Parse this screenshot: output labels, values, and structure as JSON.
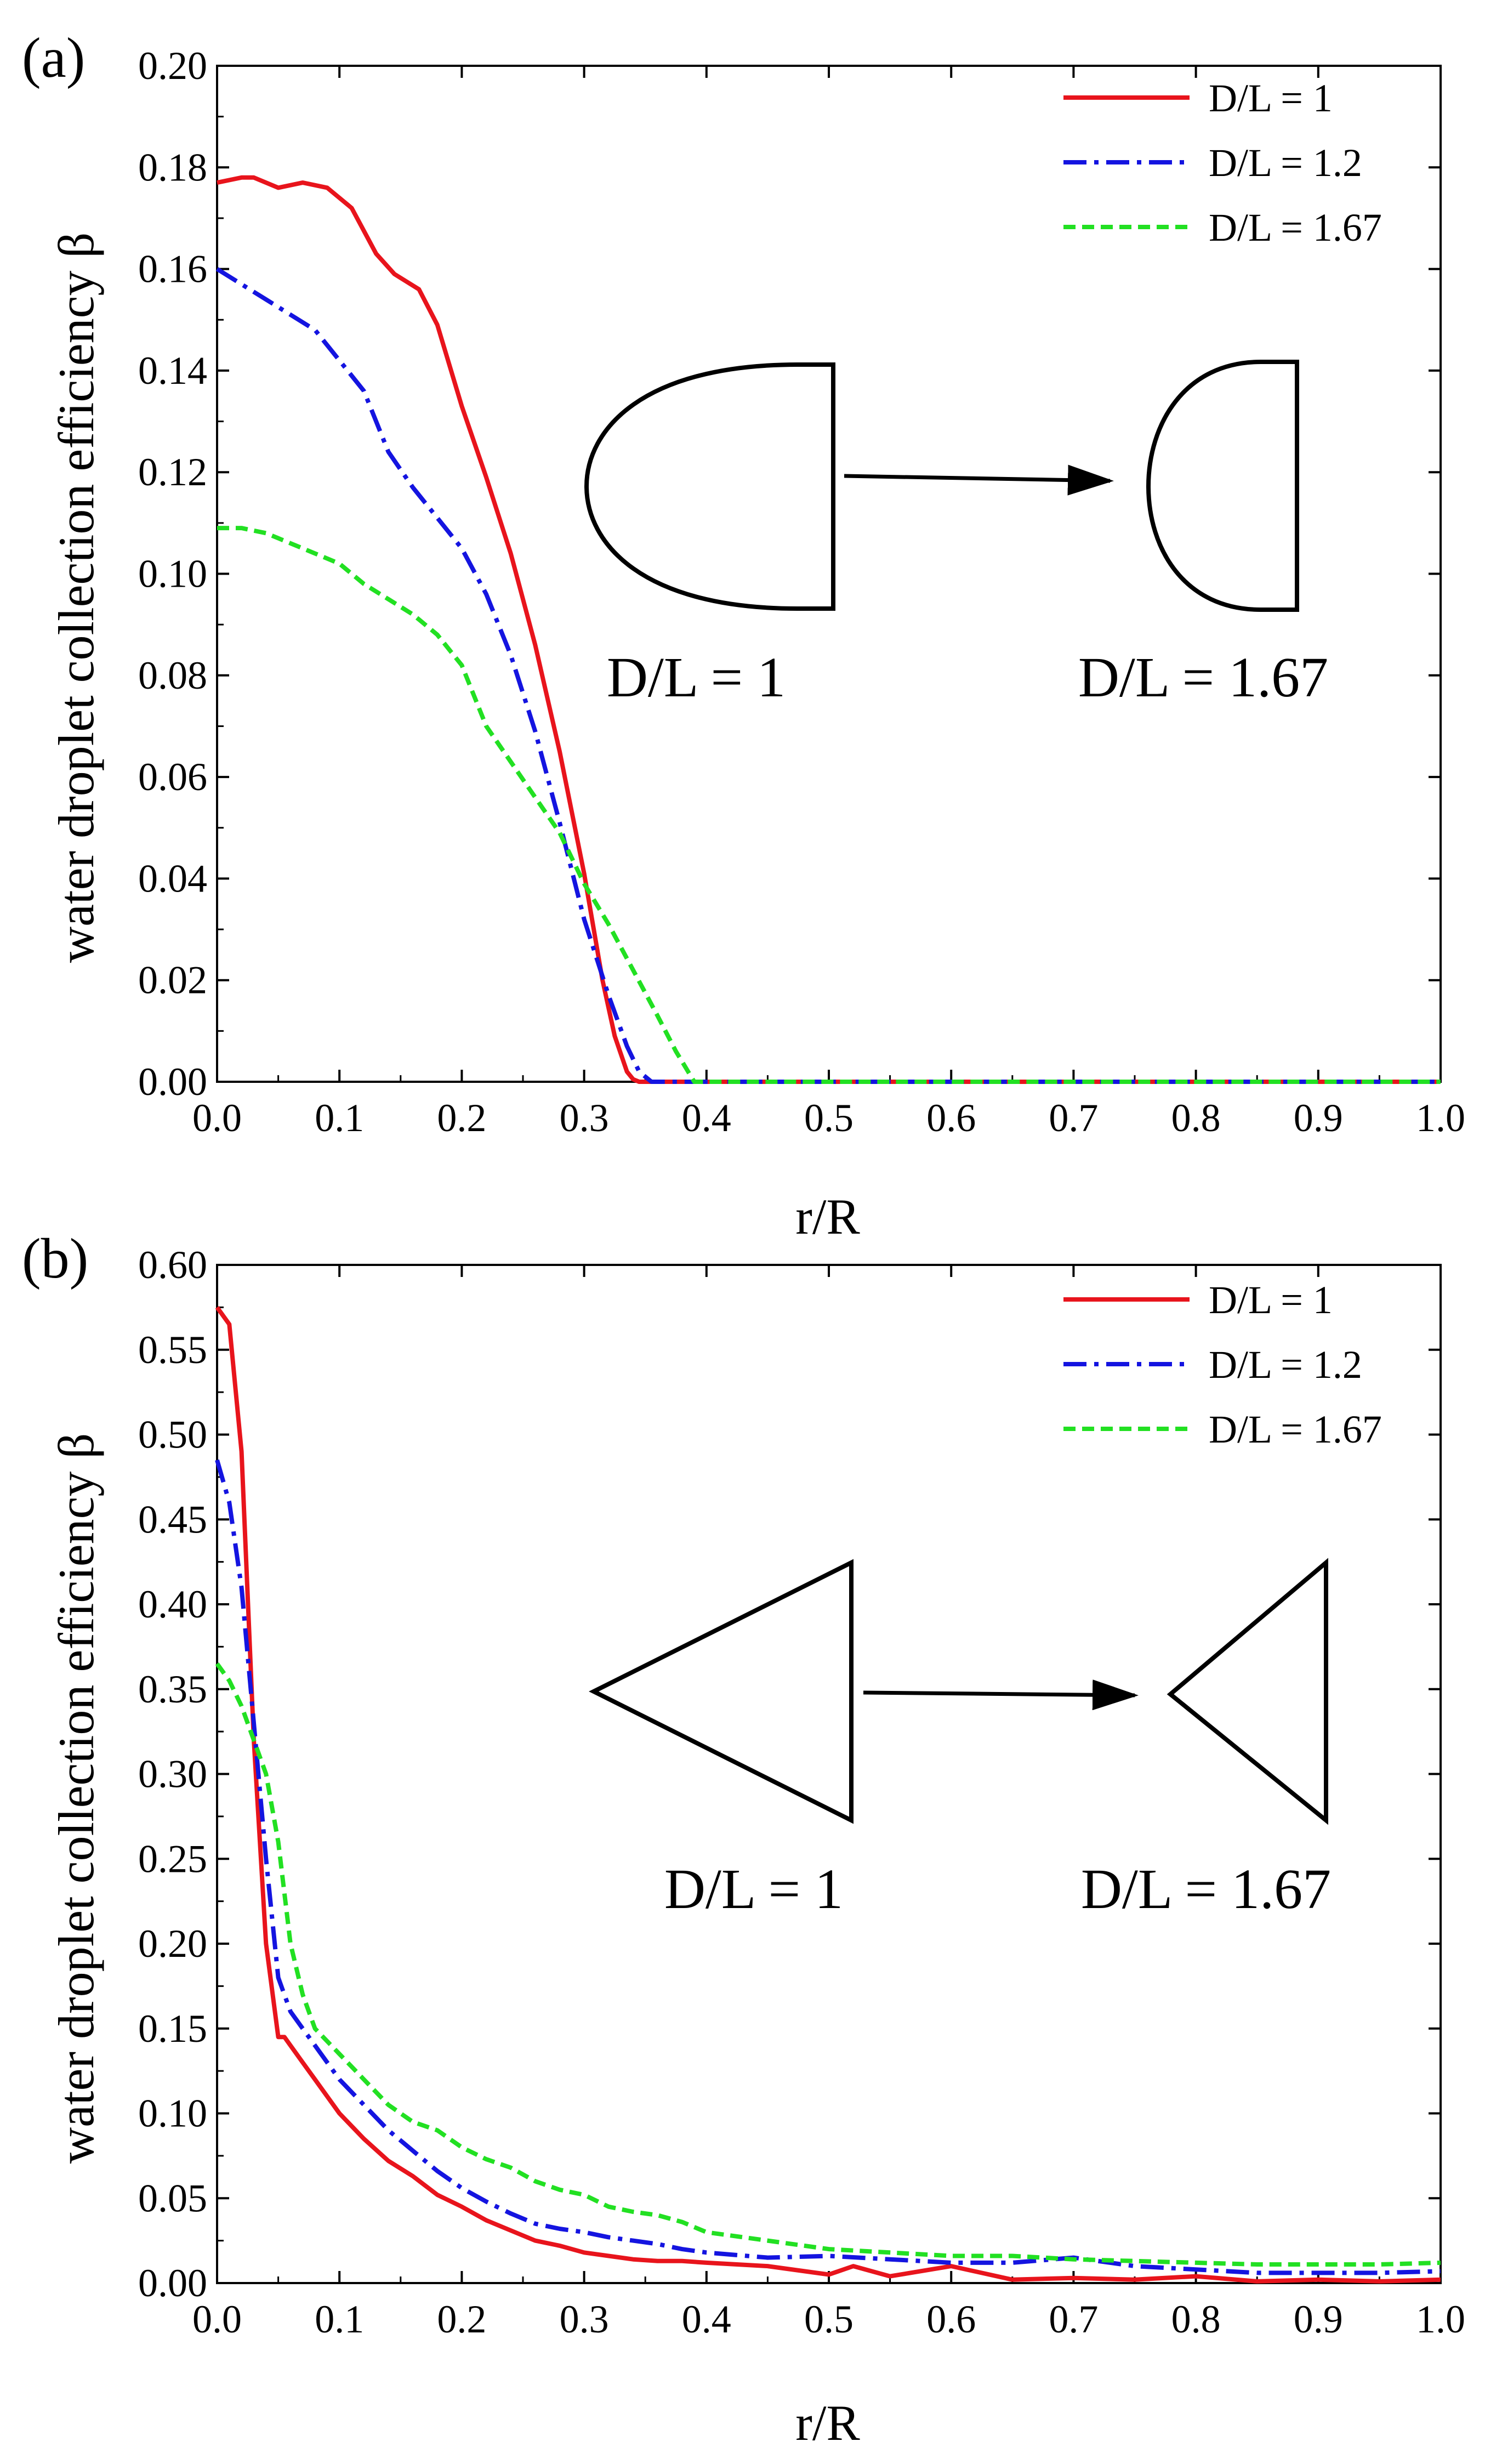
{
  "chart_data": [
    {
      "type": "line",
      "panel_label": "(a)",
      "xlabel": "r/R",
      "ylabel": "water droplet collection efficiency β",
      "xlim": [
        0.0,
        1.0
      ],
      "ylim": [
        0.0,
        0.2
      ],
      "x_ticks": [
        "0.0",
        "0.1",
        "0.2",
        "0.3",
        "0.4",
        "0.5",
        "0.6",
        "0.7",
        "0.8",
        "0.9",
        "1.0"
      ],
      "y_ticks": [
        "0.00",
        "0.02",
        "0.04",
        "0.06",
        "0.08",
        "0.10",
        "0.12",
        "0.14",
        "0.16",
        "0.18",
        "0.20"
      ],
      "legend_position": "top-right",
      "series": [
        {
          "name": "D/L = 1",
          "color": "#e8141c",
          "style": "solid",
          "x": [
            0.0,
            0.02,
            0.03,
            0.05,
            0.07,
            0.09,
            0.11,
            0.13,
            0.145,
            0.165,
            0.18,
            0.2,
            0.22,
            0.24,
            0.26,
            0.28,
            0.3,
            0.315,
            0.325,
            0.335,
            0.34,
            0.345,
            0.36,
            1.0
          ],
          "y": [
            0.177,
            0.178,
            0.178,
            0.176,
            0.177,
            0.176,
            0.172,
            0.163,
            0.159,
            0.156,
            0.149,
            0.133,
            0.119,
            0.104,
            0.086,
            0.065,
            0.041,
            0.02,
            0.009,
            0.002,
            0.0005,
            0.0,
            0.0,
            0.0
          ]
        },
        {
          "name": "D/L = 1.2",
          "color": "#1414e0",
          "style": "dashdot",
          "x": [
            0.0,
            0.02,
            0.04,
            0.06,
            0.08,
            0.1,
            0.12,
            0.14,
            0.16,
            0.18,
            0.2,
            0.22,
            0.24,
            0.26,
            0.28,
            0.3,
            0.32,
            0.335,
            0.345,
            0.355,
            0.36,
            1.0
          ],
          "y": [
            0.16,
            0.157,
            0.154,
            0.151,
            0.148,
            0.142,
            0.136,
            0.124,
            0.117,
            0.111,
            0.105,
            0.096,
            0.084,
            0.069,
            0.051,
            0.032,
            0.017,
            0.007,
            0.002,
            0.0,
            0.0,
            0.0
          ]
        },
        {
          "name": "D/L = 1.67",
          "color": "#22e022",
          "style": "dashed",
          "x": [
            0.0,
            0.02,
            0.04,
            0.06,
            0.08,
            0.1,
            0.12,
            0.14,
            0.16,
            0.18,
            0.2,
            0.22,
            0.24,
            0.26,
            0.28,
            0.3,
            0.32,
            0.34,
            0.36,
            0.375,
            0.385,
            0.39,
            1.0
          ],
          "y": [
            0.109,
            0.109,
            0.108,
            0.106,
            0.104,
            0.102,
            0.098,
            0.095,
            0.092,
            0.088,
            0.082,
            0.07,
            0.063,
            0.056,
            0.049,
            0.039,
            0.031,
            0.022,
            0.013,
            0.006,
            0.002,
            0.0,
            0.0
          ]
        }
      ],
      "inset": {
        "shape": "semi-ellipse",
        "left_label": "D/L = 1",
        "right_label": "D/L = 1.67"
      }
    },
    {
      "type": "line",
      "panel_label": "(b)",
      "xlabel": "r/R",
      "ylabel": "water droplet collection efficiency β",
      "xlim": [
        0.0,
        1.0
      ],
      "ylim": [
        0.0,
        0.6
      ],
      "x_ticks": [
        "0.0",
        "0.1",
        "0.2",
        "0.3",
        "0.4",
        "0.5",
        "0.6",
        "0.7",
        "0.8",
        "0.9",
        "1.0"
      ],
      "y_ticks": [
        "0.00",
        "0.05",
        "0.10",
        "0.15",
        "0.20",
        "0.25",
        "0.30",
        "0.35",
        "0.40",
        "0.45",
        "0.50",
        "0.55",
        "0.60"
      ],
      "legend_position": "top-right",
      "series": [
        {
          "name": "D/L = 1",
          "color": "#e8141c",
          "style": "solid",
          "x": [
            0.0,
            0.01,
            0.02,
            0.03,
            0.04,
            0.05,
            0.055,
            0.06,
            0.07,
            0.08,
            0.09,
            0.1,
            0.12,
            0.14,
            0.16,
            0.18,
            0.2,
            0.22,
            0.24,
            0.26,
            0.28,
            0.3,
            0.32,
            0.34,
            0.36,
            0.38,
            0.4,
            0.45,
            0.5,
            0.52,
            0.55,
            0.6,
            0.65,
            0.7,
            0.75,
            0.8,
            0.85,
            0.9,
            0.95,
            1.0
          ],
          "y": [
            0.575,
            0.565,
            0.49,
            0.32,
            0.2,
            0.145,
            0.145,
            0.14,
            0.13,
            0.12,
            0.11,
            0.1,
            0.085,
            0.072,
            0.063,
            0.052,
            0.045,
            0.037,
            0.031,
            0.025,
            0.022,
            0.018,
            0.016,
            0.014,
            0.013,
            0.013,
            0.012,
            0.01,
            0.005,
            0.01,
            0.004,
            0.01,
            0.002,
            0.003,
            0.002,
            0.004,
            0.001,
            0.002,
            0.001,
            0.002
          ]
        },
        {
          "name": "D/L = 1.2",
          "color": "#1414e0",
          "style": "dashdot",
          "x": [
            0.0,
            0.01,
            0.02,
            0.03,
            0.04,
            0.05,
            0.06,
            0.07,
            0.08,
            0.1,
            0.12,
            0.14,
            0.16,
            0.18,
            0.2,
            0.22,
            0.24,
            0.26,
            0.28,
            0.3,
            0.32,
            0.34,
            0.36,
            0.38,
            0.4,
            0.45,
            0.5,
            0.55,
            0.6,
            0.65,
            0.7,
            0.75,
            0.8,
            0.85,
            0.9,
            0.95,
            1.0
          ],
          "y": [
            0.485,
            0.46,
            0.41,
            0.33,
            0.25,
            0.18,
            0.16,
            0.15,
            0.14,
            0.12,
            0.105,
            0.09,
            0.078,
            0.066,
            0.056,
            0.048,
            0.041,
            0.035,
            0.032,
            0.03,
            0.027,
            0.025,
            0.023,
            0.02,
            0.018,
            0.015,
            0.016,
            0.014,
            0.012,
            0.012,
            0.015,
            0.01,
            0.008,
            0.006,
            0.006,
            0.006,
            0.007
          ]
        },
        {
          "name": "D/L = 1.67",
          "color": "#22e022",
          "style": "dashed",
          "x": [
            0.0,
            0.01,
            0.02,
            0.03,
            0.04,
            0.05,
            0.06,
            0.07,
            0.08,
            0.1,
            0.12,
            0.14,
            0.16,
            0.18,
            0.2,
            0.22,
            0.24,
            0.26,
            0.28,
            0.3,
            0.32,
            0.34,
            0.36,
            0.38,
            0.4,
            0.45,
            0.5,
            0.55,
            0.6,
            0.65,
            0.7,
            0.75,
            0.8,
            0.85,
            0.9,
            0.95,
            1.0
          ],
          "y": [
            0.365,
            0.355,
            0.34,
            0.32,
            0.3,
            0.26,
            0.2,
            0.17,
            0.15,
            0.135,
            0.12,
            0.105,
            0.095,
            0.09,
            0.08,
            0.073,
            0.068,
            0.06,
            0.055,
            0.052,
            0.045,
            0.042,
            0.04,
            0.036,
            0.03,
            0.025,
            0.02,
            0.018,
            0.016,
            0.016,
            0.014,
            0.013,
            0.012,
            0.011,
            0.011,
            0.011,
            0.012
          ]
        }
      ],
      "inset": {
        "shape": "triangle",
        "left_label": "D/L = 1",
        "right_label": "D/L = 1.67"
      }
    }
  ]
}
